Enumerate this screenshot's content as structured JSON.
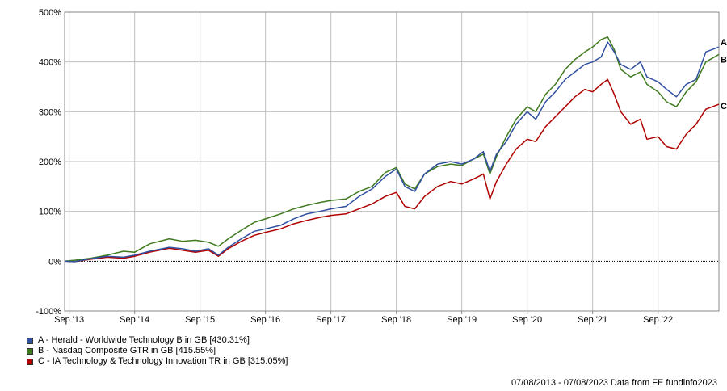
{
  "chart_data": {
    "type": "line",
    "ylim": [
      -100,
      500
    ],
    "yticks": [
      "-100%",
      "0%",
      "100%",
      "200%",
      "300%",
      "400%",
      "500%"
    ],
    "xticks": [
      "Sep '13",
      "Sep '14",
      "Sep '15",
      "Sep '16",
      "Sep '17",
      "Sep '18",
      "Sep '19",
      "Sep '20",
      "Sep '21",
      "Sep '22"
    ],
    "grid": true,
    "legend_position": "bottom-left",
    "series": [
      {
        "key": "A",
        "name": "A - Herald - Worldwide Technology B in GB [430.31%]",
        "color": "#3050a0",
        "x": [
          2013.6,
          2013.75,
          2014.0,
          2014.25,
          2014.5,
          2014.67,
          2014.9,
          2015.2,
          2015.4,
          2015.6,
          2015.8,
          2015.95,
          2016.1,
          2016.3,
          2016.5,
          2016.67,
          2016.9,
          2017.1,
          2017.3,
          2017.5,
          2017.67,
          2017.9,
          2018.1,
          2018.3,
          2018.5,
          2018.67,
          2018.8,
          2018.95,
          2019.1,
          2019.3,
          2019.5,
          2019.67,
          2019.85,
          2020.0,
          2020.1,
          2020.2,
          2020.35,
          2020.5,
          2020.67,
          2020.8,
          2020.95,
          2021.1,
          2021.25,
          2021.4,
          2021.55,
          2021.67,
          2021.8,
          2021.9,
          2022.0,
          2022.1,
          2022.25,
          2022.4,
          2022.5,
          2022.67,
          2022.8,
          2022.95,
          2023.1,
          2023.25,
          2023.4,
          2023.6
        ],
        "values": [
          0,
          -1,
          5,
          10,
          8,
          12,
          20,
          28,
          25,
          20,
          25,
          12,
          28,
          45,
          60,
          65,
          72,
          85,
          95,
          100,
          105,
          110,
          130,
          145,
          170,
          185,
          150,
          140,
          175,
          195,
          200,
          195,
          205,
          220,
          180,
          215,
          240,
          275,
          300,
          285,
          320,
          340,
          365,
          380,
          395,
          400,
          410,
          440,
          420,
          395,
          385,
          400,
          370,
          360,
          345,
          330,
          355,
          365,
          420,
          430
        ]
      },
      {
        "key": "B",
        "name": "B - Nasdaq Composite GTR in GB [415.55%]",
        "color": "#3f7a1e",
        "x": [
          2013.6,
          2013.75,
          2014.0,
          2014.25,
          2014.5,
          2014.67,
          2014.9,
          2015.2,
          2015.4,
          2015.6,
          2015.8,
          2015.95,
          2016.1,
          2016.3,
          2016.5,
          2016.67,
          2016.9,
          2017.1,
          2017.3,
          2017.5,
          2017.67,
          2017.9,
          2018.1,
          2018.3,
          2018.5,
          2018.67,
          2018.8,
          2018.95,
          2019.1,
          2019.3,
          2019.5,
          2019.67,
          2019.85,
          2020.0,
          2020.1,
          2020.2,
          2020.35,
          2020.5,
          2020.67,
          2020.8,
          2020.95,
          2021.1,
          2021.25,
          2021.4,
          2021.55,
          2021.67,
          2021.8,
          2021.9,
          2022.0,
          2022.1,
          2022.25,
          2022.4,
          2022.5,
          2022.67,
          2022.8,
          2022.95,
          2023.1,
          2023.25,
          2023.4,
          2023.6
        ],
        "values": [
          0,
          2,
          6,
          12,
          20,
          18,
          35,
          45,
          40,
          42,
          38,
          30,
          45,
          62,
          78,
          85,
          95,
          105,
          112,
          118,
          122,
          125,
          140,
          150,
          178,
          188,
          155,
          145,
          175,
          190,
          195,
          192,
          205,
          215,
          175,
          210,
          250,
          285,
          310,
          300,
          335,
          355,
          385,
          405,
          420,
          430,
          445,
          450,
          425,
          385,
          370,
          380,
          355,
          340,
          320,
          310,
          340,
          360,
          400,
          415
        ]
      },
      {
        "key": "C",
        "name": "C - IA Technology & Technology Innovation TR in GB [315.05%]",
        "color": "#b00000",
        "x": [
          2013.6,
          2013.75,
          2014.0,
          2014.25,
          2014.5,
          2014.67,
          2014.9,
          2015.2,
          2015.4,
          2015.6,
          2015.8,
          2015.95,
          2016.1,
          2016.3,
          2016.5,
          2016.67,
          2016.9,
          2017.1,
          2017.3,
          2017.5,
          2017.67,
          2017.9,
          2018.1,
          2018.3,
          2018.5,
          2018.67,
          2018.8,
          2018.95,
          2019.1,
          2019.3,
          2019.5,
          2019.67,
          2019.85,
          2020.0,
          2020.1,
          2020.2,
          2020.35,
          2020.5,
          2020.67,
          2020.8,
          2020.95,
          2021.1,
          2021.25,
          2021.4,
          2021.55,
          2021.67,
          2021.8,
          2021.9,
          2022.0,
          2022.1,
          2022.25,
          2022.4,
          2022.5,
          2022.67,
          2022.8,
          2022.95,
          2023.1,
          2023.25,
          2023.4,
          2023.6
        ],
        "values": [
          0,
          -1,
          4,
          8,
          6,
          10,
          18,
          26,
          22,
          18,
          22,
          10,
          25,
          40,
          52,
          58,
          65,
          75,
          82,
          88,
          92,
          95,
          105,
          115,
          130,
          138,
          110,
          105,
          130,
          150,
          160,
          155,
          165,
          175,
          125,
          160,
          195,
          225,
          245,
          240,
          270,
          290,
          310,
          330,
          345,
          340,
          355,
          365,
          335,
          300,
          275,
          285,
          245,
          250,
          230,
          225,
          255,
          275,
          305,
          315
        ]
      }
    ]
  },
  "footer": {
    "text": "07/08/2013 - 07/08/2023 Data from FE fundinfo2023"
  }
}
